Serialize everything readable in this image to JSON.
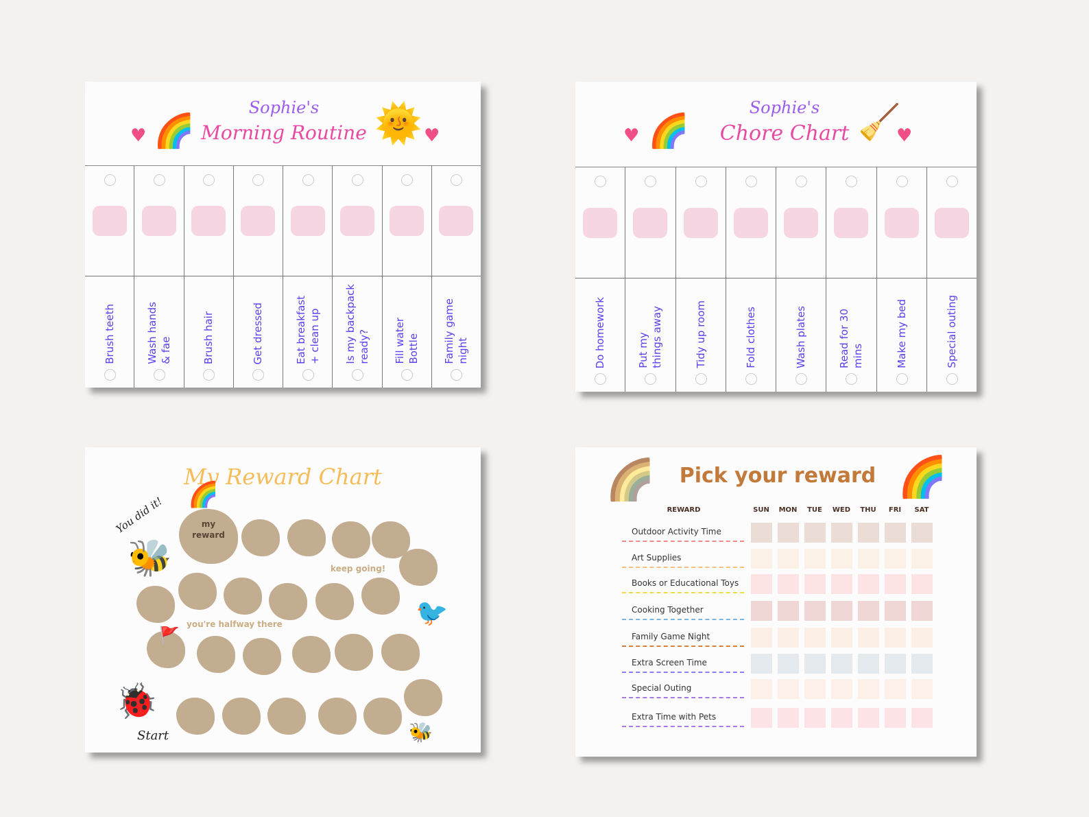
{
  "morning": {
    "name": "Sophie's",
    "title": "Morning Routine",
    "tasks": [
      {
        "label": "Brush teeth",
        "icon": "tooth-icon"
      },
      {
        "label": "Wash hands\n& fae",
        "icon": "hand-washing-icon"
      },
      {
        "label": "Brush hair",
        "icon": "hairbrush-icon"
      },
      {
        "label": "Get dressed",
        "icon": "overalls-icon"
      },
      {
        "label": "Eat breakfast\n+ clean up",
        "icon": "breakfast-plate-icon"
      },
      {
        "label": "Is my backpack\nready?",
        "icon": "backpack-icon"
      },
      {
        "label": "Fill water\nBottle",
        "icon": "water-bottle-icon"
      },
      {
        "label": "Family game\nnight",
        "icon": "gift-icon"
      }
    ]
  },
  "chore": {
    "name": "Sophie's",
    "title": "Chore Chart",
    "tasks": [
      {
        "label": "Do homework",
        "icon": "chalkboard-icon"
      },
      {
        "label": "Put my\nthings away",
        "icon": "girl-tidying-icon"
      },
      {
        "label": "Tidy up room",
        "icon": "broom-icon"
      },
      {
        "label": "Fold clothes",
        "icon": "overalls-icon"
      },
      {
        "label": "Wash plates",
        "icon": "boy-washing-icon"
      },
      {
        "label": "Read for 30\nmins",
        "icon": "book-brain-icon"
      },
      {
        "label": "Make my bed",
        "icon": "bed-icon"
      },
      {
        "label": "Special outing",
        "icon": "gift-icon"
      }
    ]
  },
  "reward_chart": {
    "title": "My Reward Chart",
    "done": "You did it!",
    "goal": "my\nreward",
    "keep_going": "keep going!",
    "halfway": "you're halfway there",
    "start": "Start"
  },
  "pick": {
    "title": "Pick your reward",
    "reward_header": "REWARD",
    "days": [
      "SUN",
      "MON",
      "TUE",
      "WED",
      "THU",
      "FRI",
      "SAT"
    ],
    "rows": [
      {
        "label": "Outdoor Activity Time",
        "line": "#f08a8a",
        "box": "#ecdcd6"
      },
      {
        "label": "Art Supplies",
        "line": "#f5c07a",
        "box": "#fbf1e6"
      },
      {
        "label": "Books or Educational Toys",
        "line": "#f0dc4a",
        "box": "#fde3e3"
      },
      {
        "label": "Cooking Together",
        "line": "#7ab8e8",
        "box": "#f1d6d6"
      },
      {
        "label": "Family Game Night",
        "line": "#d4803a",
        "box": "#fcefe6"
      },
      {
        "label": "Extra Screen Time",
        "line": "#8a7ff0",
        "box": "#e3e9ec"
      },
      {
        "label": "Special Outing",
        "line": "#a77ae8",
        "box": "#fcf0e8"
      },
      {
        "label": "Extra Time with Pets",
        "line": "#a77ae8",
        "box": "#fde3e5"
      }
    ]
  }
}
